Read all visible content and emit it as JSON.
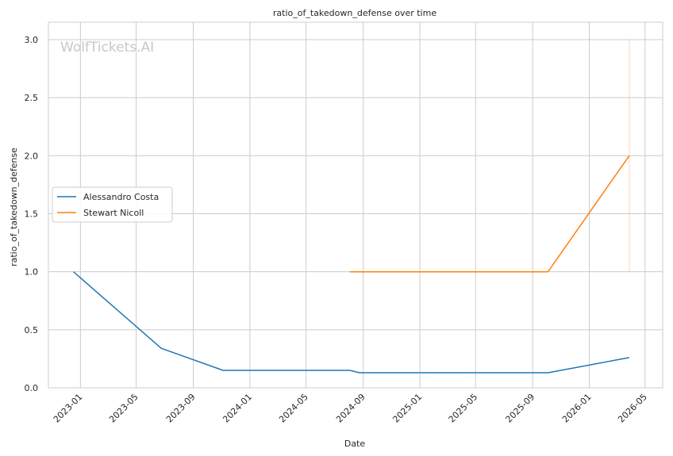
{
  "chart_data": {
    "type": "line",
    "title": "ratio_of_takedown_defense over time",
    "xlabel": "Date",
    "ylabel": "ratio_of_takedown_defense",
    "watermark": "WolfTickets.AI",
    "xlim": [
      "2022-10-24",
      "2026-06-08"
    ],
    "ylim": [
      0,
      3.15
    ],
    "x_ticks": [
      "2023-01",
      "2023-05",
      "2023-09",
      "2024-01",
      "2024-05",
      "2024-09",
      "2025-01",
      "2025-05",
      "2025-09",
      "2026-01",
      "2026-05"
    ],
    "y_ticks": [
      "0.0",
      "0.5",
      "1.0",
      "1.5",
      "2.0",
      "2.5",
      "3.0"
    ],
    "grid": true,
    "legend_position": "center-left",
    "series": [
      {
        "name": "Alessandro Costa",
        "color": "#1f77b4",
        "points": [
          {
            "x": "2022-12-17",
            "y": 1.0
          },
          {
            "x": "2023-06-24",
            "y": 0.34
          },
          {
            "x": "2023-11-04",
            "y": 0.15
          },
          {
            "x": "2024-08-03",
            "y": 0.15
          },
          {
            "x": "2024-08-24",
            "y": 0.13
          },
          {
            "x": "2025-10-04",
            "y": 0.13
          },
          {
            "x": "2026-03-28",
            "y": 0.26
          }
        ]
      },
      {
        "name": "Stewart Nicoll",
        "color": "#ff7f0e",
        "points": [
          {
            "x": "2024-08-03",
            "y": 1.0
          },
          {
            "x": "2025-10-04",
            "y": 1.0
          },
          {
            "x": "2026-03-28",
            "y": 2.0
          }
        ]
      }
    ],
    "vertical_marker": {
      "x": "2026-03-28",
      "y_from": 1.0,
      "y_to": 3.0,
      "color": "#ff7f0e"
    }
  }
}
